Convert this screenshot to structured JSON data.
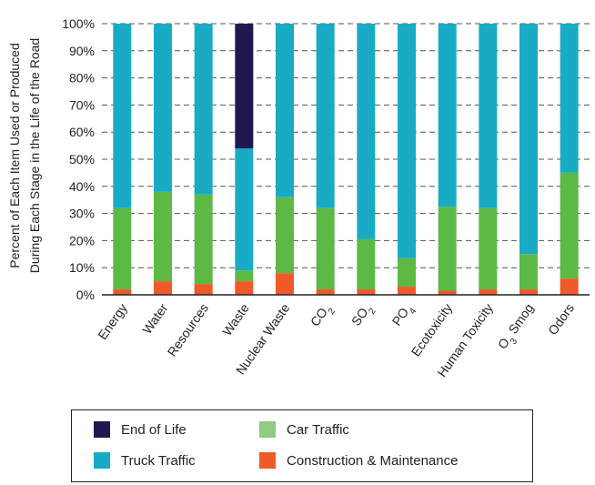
{
  "chart_data": {
    "type": "bar",
    "stacked": true,
    "ylabel_line1": "Percent of Each Item Used or Produced",
    "ylabel_line2": "During Each Stage in the Life of the Road",
    "yticks": [
      "0%",
      "10%",
      "20%",
      "30%",
      "40%",
      "50%",
      "60%",
      "70%",
      "80%",
      "90%",
      "100%"
    ],
    "ylim": [
      0,
      100
    ],
    "grid": "horizontal-dashed",
    "categories": [
      {
        "main": "Energy",
        "sub": ""
      },
      {
        "main": "Water",
        "sub": ""
      },
      {
        "main": "Resources",
        "sub": ""
      },
      {
        "main": "Waste",
        "sub": ""
      },
      {
        "main": "Nuclear Waste",
        "sub": ""
      },
      {
        "main": "CO",
        "sub": "2"
      },
      {
        "main": "SO",
        "sub": "2"
      },
      {
        "main": "PO",
        "sub": "4"
      },
      {
        "main": "Ecotoxicity",
        "sub": ""
      },
      {
        "main": "Human Toxicity",
        "sub": ""
      },
      {
        "main": "O",
        "sub": "3",
        "after": " Smog"
      },
      {
        "main": "Odors",
        "sub": ""
      }
    ],
    "series": [
      {
        "name": "Construction & Maintenance",
        "color": "#f05a28",
        "values": [
          2,
          5,
          4,
          5,
          8,
          2,
          2,
          3,
          1.5,
          2,
          2,
          6
        ]
      },
      {
        "name": "Car Traffic",
        "color": "#5cb946",
        "values": [
          30,
          33,
          33,
          4,
          28,
          30,
          18.5,
          10.5,
          31,
          30,
          13,
          39
        ]
      },
      {
        "name": "Truck Traffic",
        "color": "#1aabc4",
        "values": [
          68,
          62,
          63,
          45,
          64,
          68,
          79.5,
          86.5,
          67.5,
          68,
          85,
          55
        ]
      },
      {
        "name": "End of Life",
        "color": "#1e1a4f",
        "values": [
          0,
          0,
          0,
          46,
          0,
          0,
          0,
          0,
          0,
          0,
          0,
          0
        ]
      }
    ],
    "legend": {
      "placement": "bottom",
      "items": [
        {
          "label": "End of Life",
          "color": "#1e1a4f"
        },
        {
          "label": "Car Traffic",
          "color": "#5cb946"
        },
        {
          "label": "Truck Traffic",
          "color": "#1aabc4"
        },
        {
          "label": "Construction & Maintenance",
          "color": "#f05a28"
        }
      ]
    }
  }
}
